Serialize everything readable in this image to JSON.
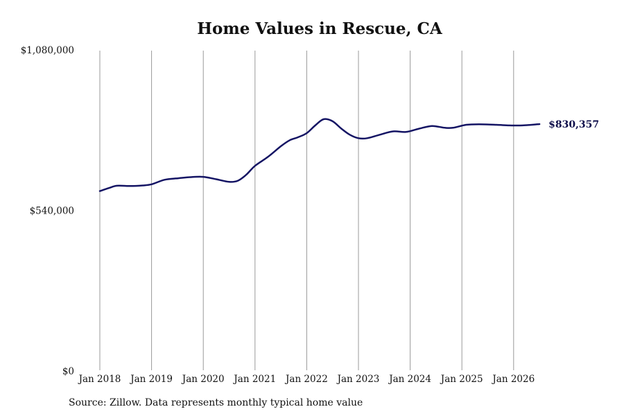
{
  "chart_data": {
    "type": "line",
    "title": "Home Values in Rescue, CA",
    "xlabel": "",
    "ylabel": "",
    "ylim": [
      0,
      1080000
    ],
    "y_ticks": [
      "$0",
      "$540,000",
      "$1,080,000"
    ],
    "y_tick_values": [
      0,
      540000,
      1080000
    ],
    "x_ticks": [
      "Jan 2018",
      "Jan 2019",
      "Jan 2020",
      "Jan 2021",
      "Jan 2022",
      "Jan 2023",
      "Jan 2024",
      "Jan 2025",
      "Jan 2026"
    ],
    "grid": "vertical",
    "line_color": "#141464",
    "grid_color": "#999999",
    "end_label": "$830,357",
    "series": [
      {
        "x": [
          2018.0,
          2018.17,
          2018.33,
          2018.58,
          2018.83,
          2019.0,
          2019.25,
          2019.5,
          2019.75,
          2020.0,
          2020.25,
          2020.5,
          2020.67,
          2020.83,
          2021.0,
          2021.25,
          2021.5,
          2021.67,
          2021.83,
          2022.0,
          2022.17,
          2022.33,
          2022.5,
          2022.67,
          2022.83,
          2023.0,
          2023.17,
          2023.42,
          2023.67,
          2023.92,
          2024.17,
          2024.42,
          2024.67,
          2024.83,
          2025.08,
          2025.33,
          2025.67,
          2025.92,
          2026.17,
          2026.5
        ],
        "y": [
          605000,
          615000,
          623000,
          622000,
          624000,
          628000,
          643000,
          648000,
          652000,
          653000,
          645000,
          636000,
          640000,
          660000,
          690000,
          720000,
          756000,
          776000,
          786000,
          800000,
          827000,
          847000,
          840000,
          815000,
          795000,
          783000,
          783000,
          795000,
          806000,
          804000,
          815000,
          824000,
          818000,
          818000,
          828000,
          830000,
          828000,
          826000,
          826000,
          830357
        ]
      }
    ]
  },
  "source_note": "Source: Zillow. Data represents monthly typical home value"
}
